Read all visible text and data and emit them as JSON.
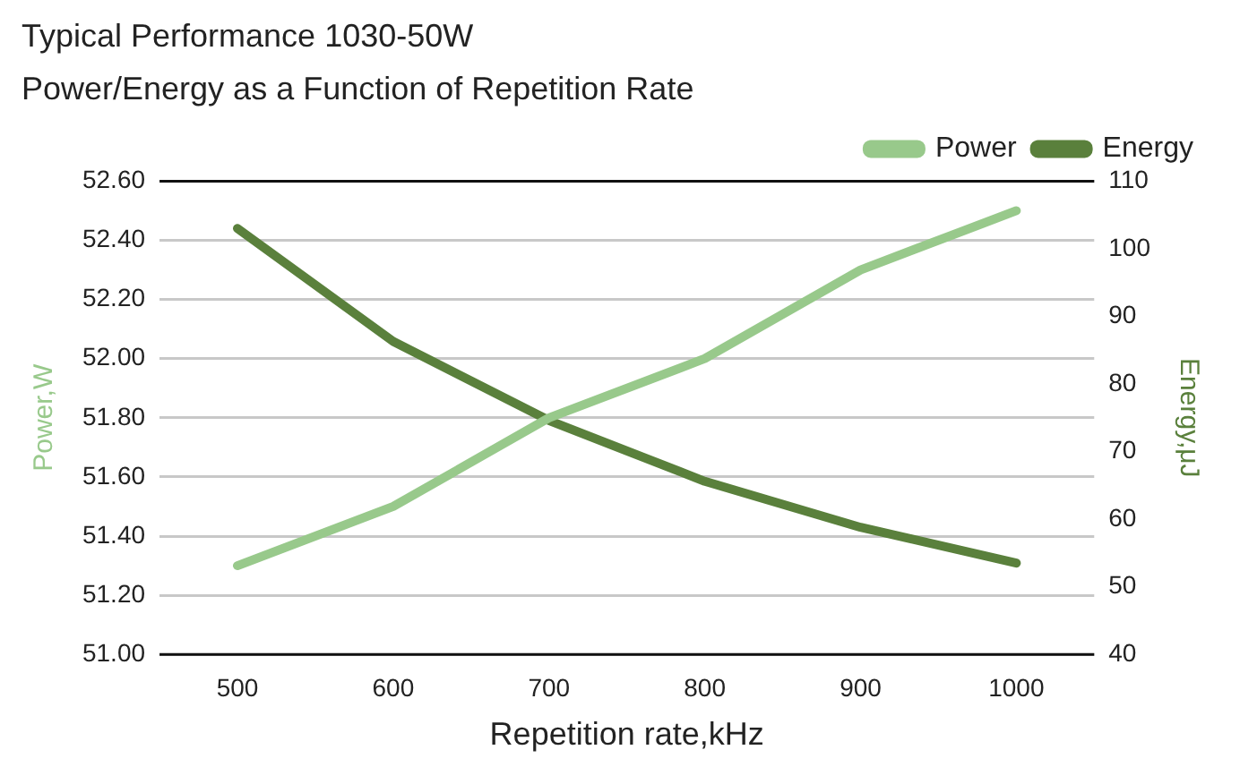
{
  "chart_data": {
    "type": "line",
    "title": "Typical Performance 1030-50W",
    "subtitle": "Power/Energy as a Function of Repetition Rate",
    "xlabel": "Repetition rate,kHz",
    "ylabel": "Power,W",
    "y2label": "Energy,μJ",
    "categories": [
      "500",
      "600",
      "700",
      "800",
      "900",
      "1000"
    ],
    "series": [
      {
        "name": "Power",
        "color": "#98c98b",
        "values": [
          51.3,
          51.5,
          51.8,
          52.0,
          52.3,
          52.5
        ]
      },
      {
        "name": "Energy",
        "color": "#5a803c",
        "axis": "y2",
        "values": [
          103,
          86.3,
          74.6,
          65.6,
          58.8,
          53.5
        ]
      }
    ],
    "ylim": [
      51.0,
      52.6
    ],
    "yticks": [
      {
        "value": 51.0,
        "label": "51.00"
      },
      {
        "value": 51.2,
        "label": "51.20"
      },
      {
        "value": 51.4,
        "label": "51.40"
      },
      {
        "value": 51.6,
        "label": "51.60"
      },
      {
        "value": 51.8,
        "label": "51.80"
      },
      {
        "value": 52.0,
        "label": "52.00"
      },
      {
        "value": 52.2,
        "label": "52.20"
      },
      {
        "value": 52.4,
        "label": "52.40"
      },
      {
        "value": 52.6,
        "label": "52.60"
      }
    ],
    "y2lim": [
      40,
      110
    ],
    "y2ticks": [
      40,
      50,
      60,
      70,
      80,
      90,
      100,
      110
    ],
    "grid": "y",
    "legend": "top right",
    "marker": "none",
    "line_style": "solid"
  }
}
